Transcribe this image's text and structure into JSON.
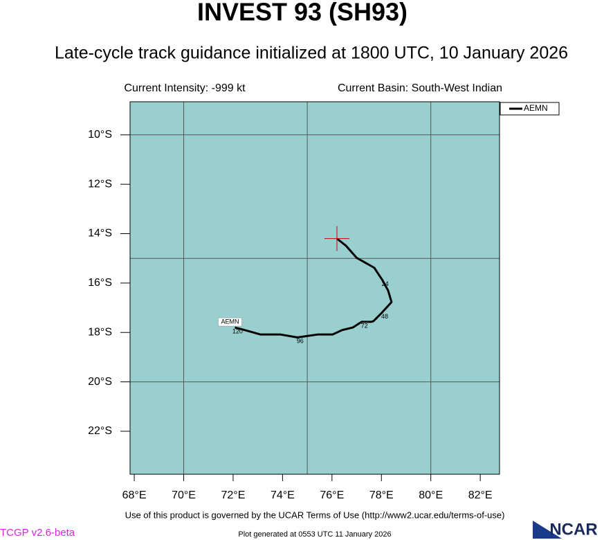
{
  "chart_data": {
    "type": "track",
    "title": "INVEST 93 (SH93)",
    "subtitle": "Late-cycle track guidance initialized at 1800 UTC, 10 January 2026",
    "intensity_text": "Current Intensity: -999 kt",
    "basin_text": "Current Basin: South-West Indian",
    "xlim": [
      67.83,
      82.78
    ],
    "ylim": [
      -23.74,
      -8.66
    ],
    "xticks": [
      {
        "value": 68,
        "label": "68°E"
      },
      {
        "value": 70,
        "label": "70°E"
      },
      {
        "value": 72,
        "label": "72°E"
      },
      {
        "value": 74,
        "label": "74°E"
      },
      {
        "value": 76,
        "label": "76°E"
      },
      {
        "value": 78,
        "label": "78°E"
      },
      {
        "value": 80,
        "label": "80°E"
      },
      {
        "value": 82,
        "label": "82°E"
      }
    ],
    "yticks": [
      {
        "value": -10,
        "label": "10°S"
      },
      {
        "value": -12,
        "label": "12°S"
      },
      {
        "value": -14,
        "label": "14°S"
      },
      {
        "value": -16,
        "label": "16°S"
      },
      {
        "value": -18,
        "label": "18°S"
      },
      {
        "value": -20,
        "label": "20°S"
      },
      {
        "value": -22,
        "label": "22°S"
      }
    ],
    "grid_x": [
      70,
      75,
      80
    ],
    "grid_y": [
      -10,
      -15,
      -20
    ],
    "background_color": "#99cfcf",
    "series": [
      {
        "name": "AEMN",
        "color": "#000000",
        "x": [
          76.2,
          76.56,
          77.0,
          77.71,
          78.04,
          78.27,
          78.41,
          78.02,
          77.68,
          77.6,
          77.2,
          76.84,
          76.42,
          76.03,
          75.44,
          74.6,
          73.9,
          73.1,
          72.35,
          72.07
        ],
        "values": [
          -14.2,
          -14.48,
          -14.98,
          -15.38,
          -15.88,
          -16.3,
          -16.77,
          -17.2,
          -17.54,
          -17.57,
          -17.57,
          -17.8,
          -17.9,
          -18.08,
          -18.08,
          -18.2,
          -18.08,
          -18.08,
          -17.87,
          -17.8
        ],
        "point_labels": [
          null,
          null,
          null,
          null,
          24,
          null,
          null,
          48,
          null,
          null,
          72,
          null,
          null,
          null,
          null,
          96,
          null,
          null,
          null,
          120
        ]
      }
    ],
    "current_position": {
      "x": 76.2,
      "y": -14.2,
      "color": "#cc0000"
    },
    "terms_text": "Use of this product is governed by the UCAR Terms of Use (http://www2.ucar.edu/terms-of-use)",
    "version_text": "TCGP v2.6-beta",
    "generated_text": "Plot generated at 0553 UTC   11 January 2026",
    "logo_text": "NCAR"
  }
}
